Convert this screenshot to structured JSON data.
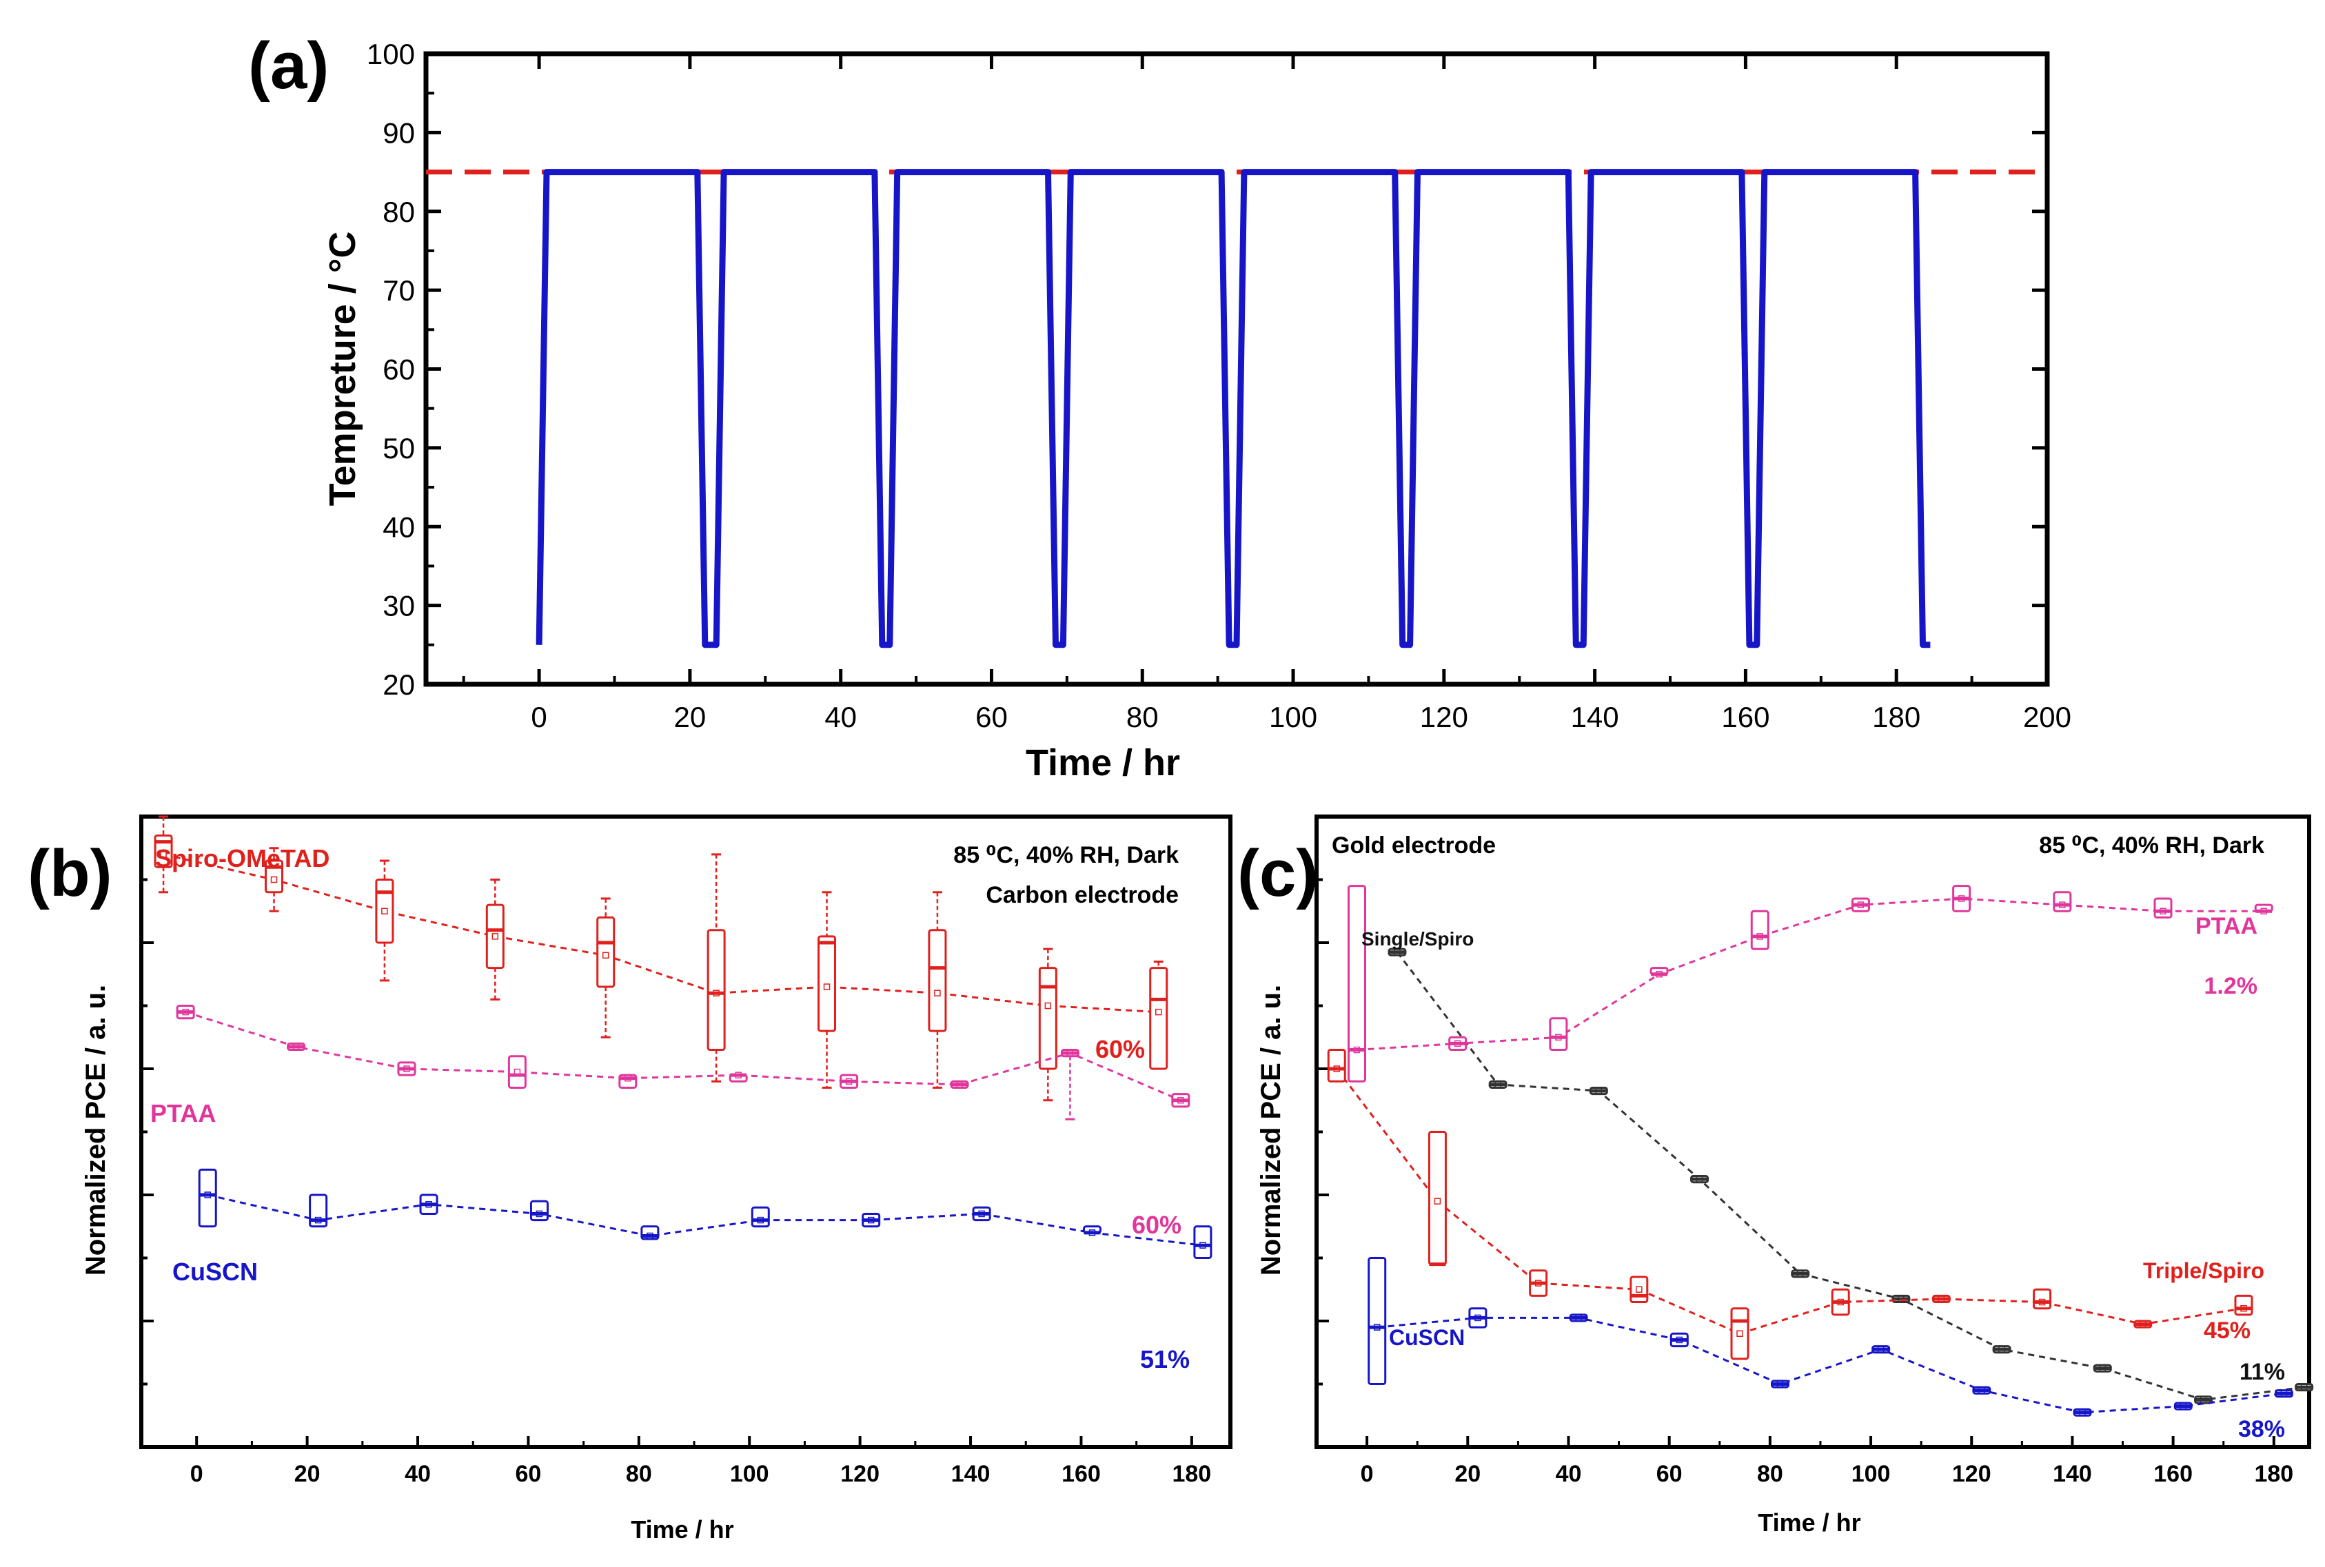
{
  "chart_data": [
    {
      "panel": "(a)",
      "type": "line",
      "xlabel": "Time / hr",
      "ylabel": "Tempreture / °C",
      "xlim": [
        -15,
        200
      ],
      "ylim": [
        20,
        100
      ],
      "xticks": [
        0,
        20,
        40,
        60,
        80,
        100,
        120,
        140,
        160,
        180,
        200
      ],
      "yticks": [
        20,
        30,
        40,
        50,
        60,
        70,
        80,
        90,
        100
      ],
      "reference_line": {
        "y": 85,
        "style": "dashed",
        "color": "#e0201c"
      },
      "series": [
        {
          "name": "temperature",
          "color": "#1616c8",
          "x": [
            0,
            1,
            21,
            22,
            23.5,
            24.5,
            44.5,
            45.5,
            46.5,
            47.5,
            67.5,
            68.5,
            69.5,
            70.5,
            90.5,
            91.5,
            92.5,
            93.5,
            113.5,
            114.5,
            115.5,
            116.5,
            136.5,
            137.5,
            138.5,
            139.5,
            159.5,
            160.5,
            161.5,
            162.5,
            182.5,
            183.5,
            184.5
          ],
          "y": [
            25,
            85,
            85,
            25,
            25,
            85,
            85,
            25,
            25,
            85,
            85,
            25,
            25,
            85,
            85,
            25,
            25,
            85,
            85,
            25,
            25,
            85,
            85,
            25,
            25,
            85,
            85,
            25,
            25,
            85,
            85,
            25,
            25
          ]
        }
      ]
    },
    {
      "panel": "(b)",
      "type": "box",
      "xlabel": "Time / hr",
      "ylabel": "Normalized PCE / a. u.",
      "xlim": [
        -10,
        187
      ],
      "ylim": [
        0,
        10
      ],
      "xticks": [
        0,
        20,
        40,
        60,
        80,
        100,
        120,
        140,
        160,
        180
      ],
      "annotations": [
        "85 ⁰C, 40% RH, Dark",
        "Carbon electrode"
      ],
      "series": [
        {
          "name": "Spiro-OMeTAD",
          "color": "#e0201c",
          "end_label": "60%",
          "x": [
            -6,
            14,
            34,
            54,
            74,
            94,
            114,
            134,
            154,
            174
          ],
          "q1": [
            9.2,
            8.8,
            8.0,
            7.6,
            7.3,
            6.3,
            6.6,
            6.6,
            6.0,
            6.0
          ],
          "q3": [
            9.7,
            9.3,
            9.0,
            8.6,
            8.4,
            8.2,
            8.1,
            8.2,
            7.6,
            7.6
          ],
          "median": [
            9.6,
            9.2,
            8.8,
            8.2,
            8.0,
            7.2,
            8.0,
            7.6,
            7.3,
            7.1
          ],
          "mean": [
            9.4,
            9.0,
            8.5,
            8.1,
            7.8,
            7.2,
            7.3,
            7.2,
            7.0,
            6.9
          ],
          "whisker_low": [
            8.8,
            8.5,
            7.4,
            7.1,
            6.5,
            5.8,
            5.7,
            5.7,
            5.5,
            6.0
          ],
          "whisker_high": [
            10.0,
            9.5,
            9.3,
            9.0,
            8.7,
            9.4,
            8.8,
            8.8,
            7.9,
            7.7
          ]
        },
        {
          "name": "PTAA",
          "color": "#e0369c",
          "end_label": "60%",
          "x": [
            -2,
            18,
            38,
            58,
            78,
            98,
            118,
            138,
            158,
            178
          ],
          "q1": [
            6.8,
            6.3,
            5.9,
            5.7,
            5.7,
            5.8,
            5.7,
            5.7,
            6.2,
            5.4
          ],
          "q3": [
            7.0,
            6.4,
            6.1,
            6.2,
            5.9,
            5.9,
            5.9,
            5.8,
            6.3,
            5.6
          ],
          "median": [
            6.9,
            6.35,
            6.0,
            5.9,
            5.85,
            5.9,
            5.8,
            5.75,
            6.25,
            5.5
          ],
          "mean": [
            6.9,
            6.35,
            6.0,
            5.95,
            5.85,
            5.9,
            5.8,
            5.75,
            6.25,
            5.5
          ],
          "whisker_low": [
            6.8,
            6.3,
            5.9,
            5.7,
            5.7,
            5.8,
            5.7,
            5.7,
            5.2,
            5.4
          ],
          "whisker_high": [
            7.0,
            6.4,
            6.1,
            6.2,
            5.9,
            5.9,
            5.9,
            5.8,
            6.3,
            5.6
          ]
        },
        {
          "name": "CuSCN",
          "color": "#1616c8",
          "end_label": "51%",
          "x": [
            2,
            22,
            42,
            62,
            82,
            102,
            122,
            142,
            162,
            182
          ],
          "q1": [
            3.5,
            3.5,
            3.7,
            3.6,
            3.3,
            3.5,
            3.5,
            3.6,
            3.4,
            3.0
          ],
          "q3": [
            4.4,
            4.0,
            4.0,
            3.9,
            3.5,
            3.8,
            3.7,
            3.8,
            3.5,
            3.5
          ],
          "median": [
            4.0,
            3.6,
            3.85,
            3.7,
            3.35,
            3.6,
            3.6,
            3.7,
            3.4,
            3.2
          ],
          "mean": [
            4.0,
            3.6,
            3.85,
            3.7,
            3.35,
            3.6,
            3.6,
            3.7,
            3.4,
            3.2
          ],
          "whisker_low": [
            3.5,
            3.5,
            3.7,
            3.6,
            3.3,
            3.5,
            3.5,
            3.6,
            3.4,
            3.0
          ],
          "whisker_high": [
            4.4,
            4.0,
            4.0,
            3.9,
            3.5,
            3.8,
            3.7,
            3.8,
            3.5,
            3.5
          ]
        }
      ]
    },
    {
      "panel": "(c)",
      "type": "box",
      "xlabel": "Time / hr",
      "ylabel": "Normalized PCE / a. u.",
      "xlim": [
        -10,
        187
      ],
      "ylim": [
        0,
        10
      ],
      "xticks": [
        0,
        20,
        40,
        60,
        80,
        100,
        120,
        140,
        160,
        180
      ],
      "annotations": [
        "Gold electrode",
        "85 ⁰C, 40% RH, Dark"
      ],
      "series": [
        {
          "name": "Single/Spiro",
          "color": "#333333",
          "end_label": "11%",
          "x": [
            6,
            26,
            46,
            66,
            86,
            106,
            126,
            146,
            166,
            186
          ],
          "q1": [
            7.8,
            5.7,
            5.6,
            4.2,
            2.7,
            2.3,
            1.5,
            1.2,
            0.7,
            0.9
          ],
          "q3": [
            7.9,
            5.8,
            5.7,
            4.3,
            2.8,
            2.4,
            1.6,
            1.3,
            0.8,
            1.0
          ],
          "median": [
            7.85,
            5.75,
            5.65,
            4.25,
            2.75,
            2.35,
            1.55,
            1.25,
            0.75,
            0.95
          ],
          "mean": [
            7.85,
            5.75,
            5.65,
            4.25,
            2.75,
            2.35,
            1.55,
            1.25,
            0.75,
            0.95
          ],
          "whisker_low": [
            7.8,
            5.7,
            5.6,
            4.2,
            2.7,
            2.3,
            1.5,
            1.2,
            0.7,
            0.9
          ],
          "whisker_high": [
            7.9,
            5.8,
            5.7,
            4.3,
            2.8,
            2.4,
            1.6,
            1.3,
            0.8,
            1.0
          ]
        },
        {
          "name": "PTAA",
          "color": "#e0369c",
          "end_label": "1.2%",
          "x": [
            -2,
            18,
            38,
            58,
            78,
            98,
            118,
            138,
            158,
            178
          ],
          "q1": [
            5.8,
            6.3,
            6.3,
            7.5,
            7.9,
            8.5,
            8.5,
            8.5,
            8.4,
            8.5
          ],
          "q3": [
            8.9,
            6.5,
            6.8,
            7.6,
            8.5,
            8.7,
            8.9,
            8.8,
            8.7,
            8.6
          ],
          "median": [
            6.3,
            6.4,
            6.5,
            7.5,
            8.1,
            8.6,
            8.7,
            8.6,
            8.5,
            8.5
          ],
          "mean": [
            6.3,
            6.4,
            6.5,
            7.5,
            8.1,
            8.6,
            8.7,
            8.6,
            8.5,
            8.5
          ],
          "whisker_low": [
            5.8,
            6.3,
            6.3,
            7.5,
            7.9,
            8.5,
            8.5,
            8.5,
            8.4,
            8.5
          ],
          "whisker_high": [
            8.9,
            6.5,
            6.8,
            7.6,
            8.5,
            8.7,
            8.9,
            8.8,
            8.7,
            8.6
          ]
        },
        {
          "name": "Triple/Spiro",
          "color": "#e0201c",
          "end_label": "45%",
          "x": [
            -6,
            14,
            34,
            54,
            74,
            94,
            114,
            134,
            154,
            174
          ],
          "q1": [
            5.8,
            2.9,
            2.4,
            2.3,
            1.4,
            2.1,
            2.3,
            2.2,
            1.9,
            2.1
          ],
          "q3": [
            6.3,
            5.0,
            2.8,
            2.7,
            2.2,
            2.5,
            2.4,
            2.5,
            2.0,
            2.4
          ],
          "median": [
            6.0,
            2.9,
            2.6,
            2.4,
            2.0,
            2.3,
            2.35,
            2.3,
            1.95,
            2.2
          ],
          "mean": [
            6.0,
            3.9,
            2.6,
            2.5,
            1.8,
            2.3,
            2.35,
            2.3,
            1.95,
            2.2
          ],
          "whisker_low": [
            5.8,
            2.9,
            2.4,
            2.3,
            1.4,
            2.1,
            2.3,
            2.2,
            1.9,
            2.1
          ],
          "whisker_high": [
            6.3,
            5.0,
            2.8,
            2.7,
            2.2,
            2.5,
            2.4,
            2.5,
            2.0,
            2.4
          ]
        },
        {
          "name": "CuSCN",
          "color": "#1616c8",
          "end_label": "38%",
          "x": [
            2,
            22,
            42,
            62,
            82,
            102,
            122,
            142,
            162,
            182
          ],
          "q1": [
            1.0,
            1.9,
            2.0,
            1.6,
            0.95,
            1.5,
            0.85,
            0.5,
            0.6,
            0.8
          ],
          "q3": [
            3.0,
            2.2,
            2.1,
            1.8,
            1.05,
            1.6,
            0.95,
            0.6,
            0.7,
            0.9
          ],
          "median": [
            1.9,
            2.05,
            2.05,
            1.7,
            1.0,
            1.55,
            0.9,
            0.55,
            0.65,
            0.85
          ],
          "mean": [
            1.9,
            2.05,
            2.05,
            1.7,
            1.0,
            1.55,
            0.9,
            0.55,
            0.65,
            0.85
          ],
          "whisker_low": [
            1.0,
            1.9,
            2.0,
            1.6,
            0.95,
            1.5,
            0.85,
            0.5,
            0.6,
            0.8
          ],
          "whisker_high": [
            3.0,
            2.2,
            2.1,
            1.8,
            1.05,
            1.6,
            0.95,
            0.6,
            0.7,
            0.9
          ]
        }
      ]
    }
  ]
}
